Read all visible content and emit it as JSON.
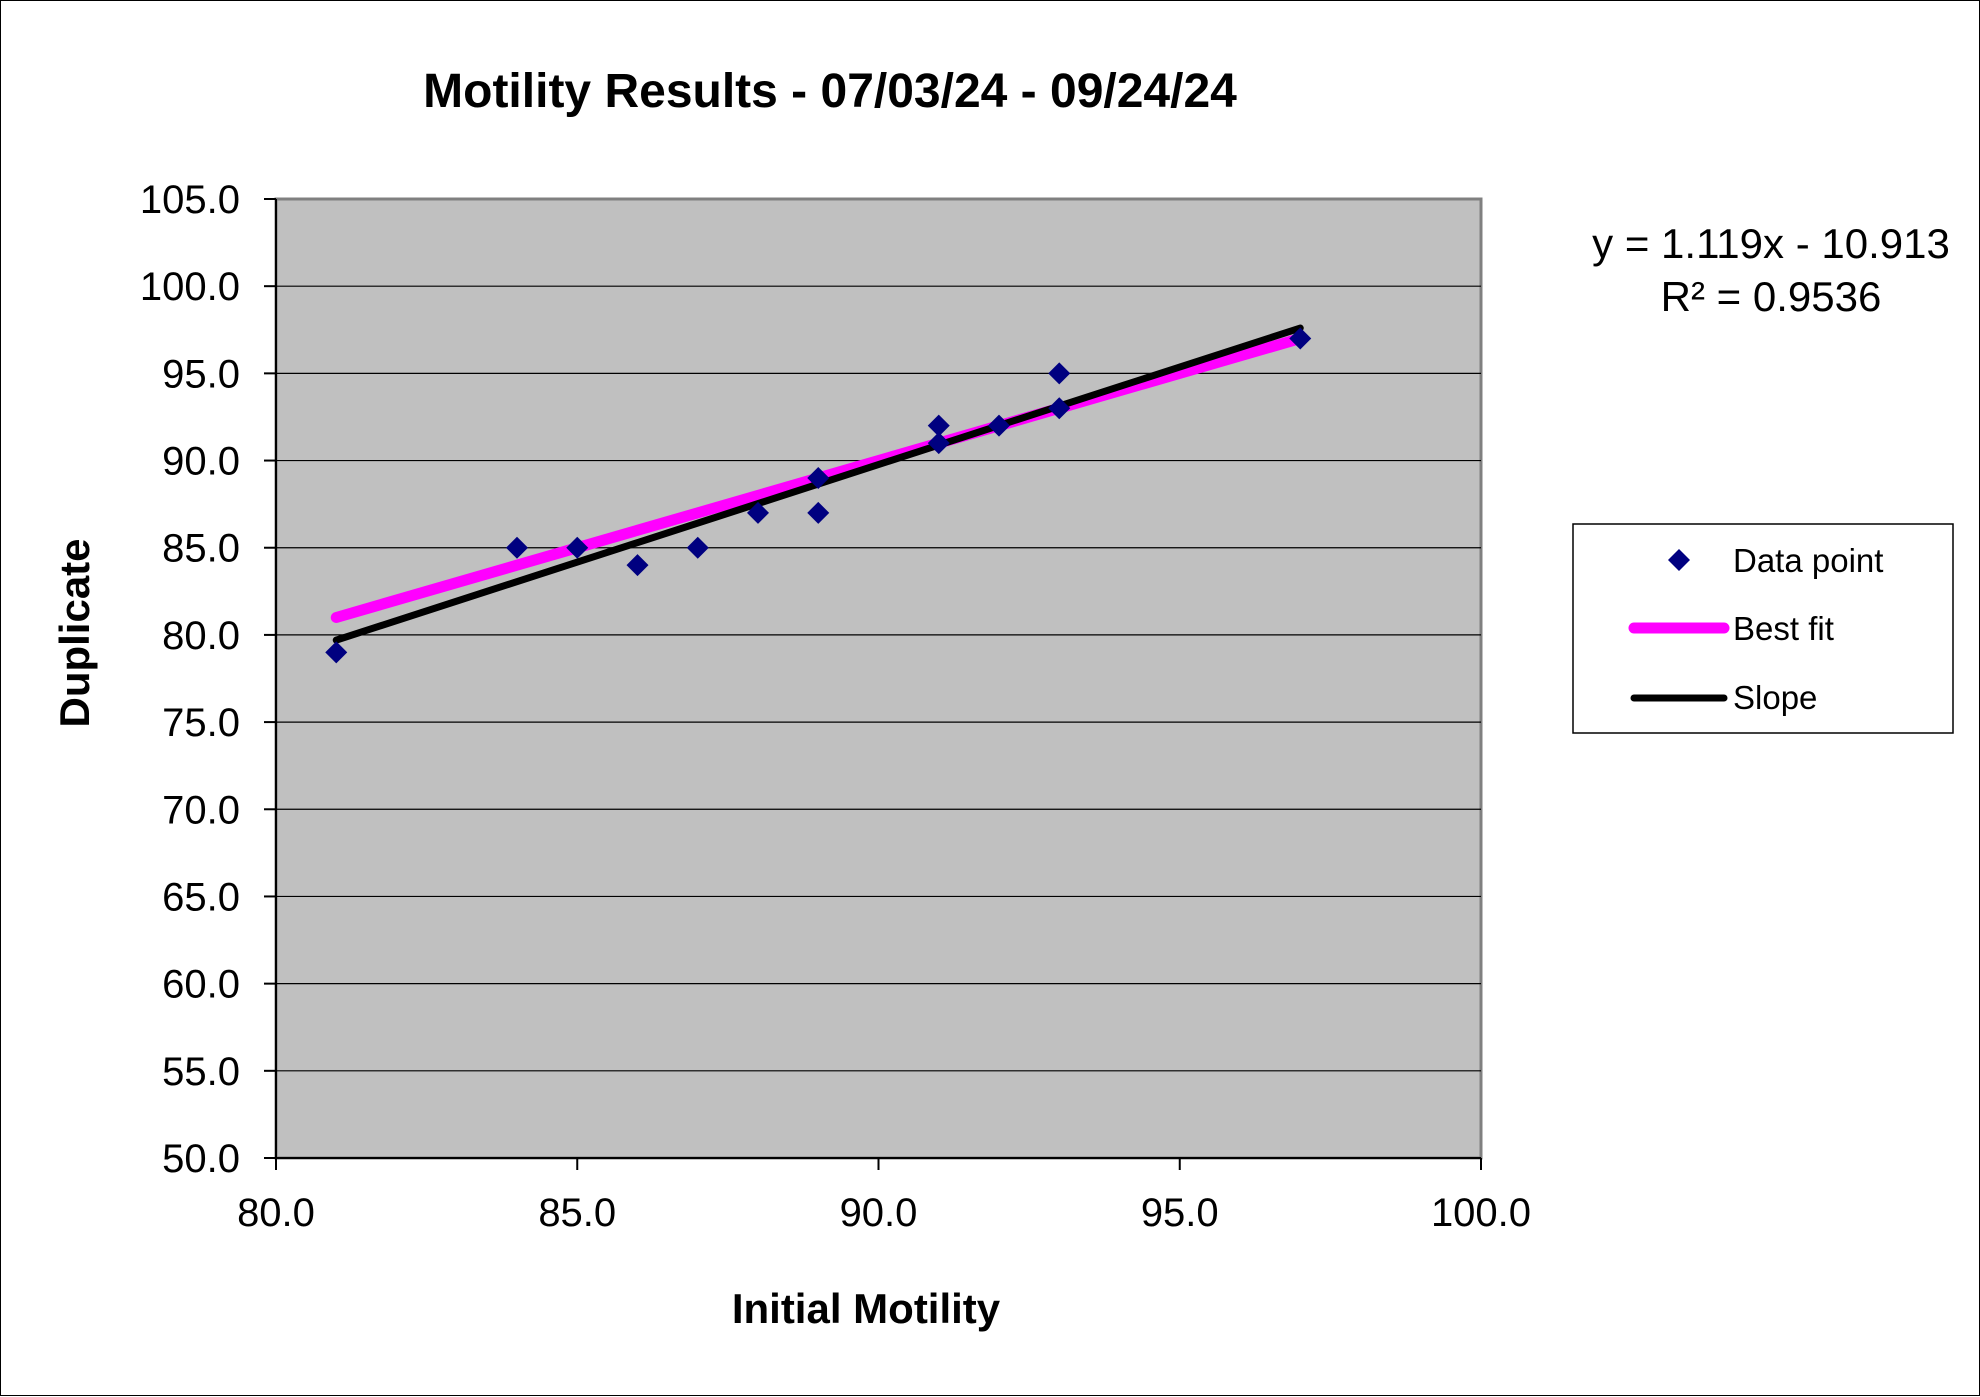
{
  "chart_data": {
    "type": "scatter",
    "title": "Motility Results - 07/03/24 - 09/24/24",
    "xlabel": "Initial Motility",
    "ylabel": "Duplicate",
    "xlim": [
      80.0,
      100.0
    ],
    "ylim": [
      50.0,
      105.0
    ],
    "x_ticks": [
      "80.0",
      "85.0",
      "90.0",
      "95.0",
      "100.0"
    ],
    "y_ticks": [
      "50.0",
      "55.0",
      "60.0",
      "65.0",
      "70.0",
      "75.0",
      "80.0",
      "85.0",
      "90.0",
      "95.0",
      "100.0",
      "105.0"
    ],
    "grid": "horizontal",
    "legend_position": "right",
    "series": [
      {
        "name": "Data point",
        "kind": "scatter",
        "color": "#000080",
        "points": [
          [
            81,
            79
          ],
          [
            84,
            85
          ],
          [
            85,
            85
          ],
          [
            86,
            84
          ],
          [
            87,
            85
          ],
          [
            88,
            87
          ],
          [
            89,
            89
          ],
          [
            89,
            87
          ],
          [
            91,
            92
          ],
          [
            91,
            91
          ],
          [
            92,
            92
          ],
          [
            93,
            95
          ],
          [
            93,
            93
          ],
          [
            97,
            97
          ]
        ]
      },
      {
        "name": "Best fit",
        "kind": "line",
        "color": "#ff00ff",
        "points": [
          [
            81,
            81.0
          ],
          [
            97,
            97.0
          ]
        ]
      },
      {
        "name": "Slope",
        "kind": "line",
        "color": "#000000",
        "points": [
          [
            81,
            79.7
          ],
          [
            97,
            97.6
          ]
        ]
      }
    ],
    "annotation": {
      "equation": "y = 1.119x - 10.913",
      "r_squared": "R² = 0.9536"
    },
    "colors": {
      "plot_background": "#c0c0c0",
      "gridline": "#000000"
    }
  }
}
